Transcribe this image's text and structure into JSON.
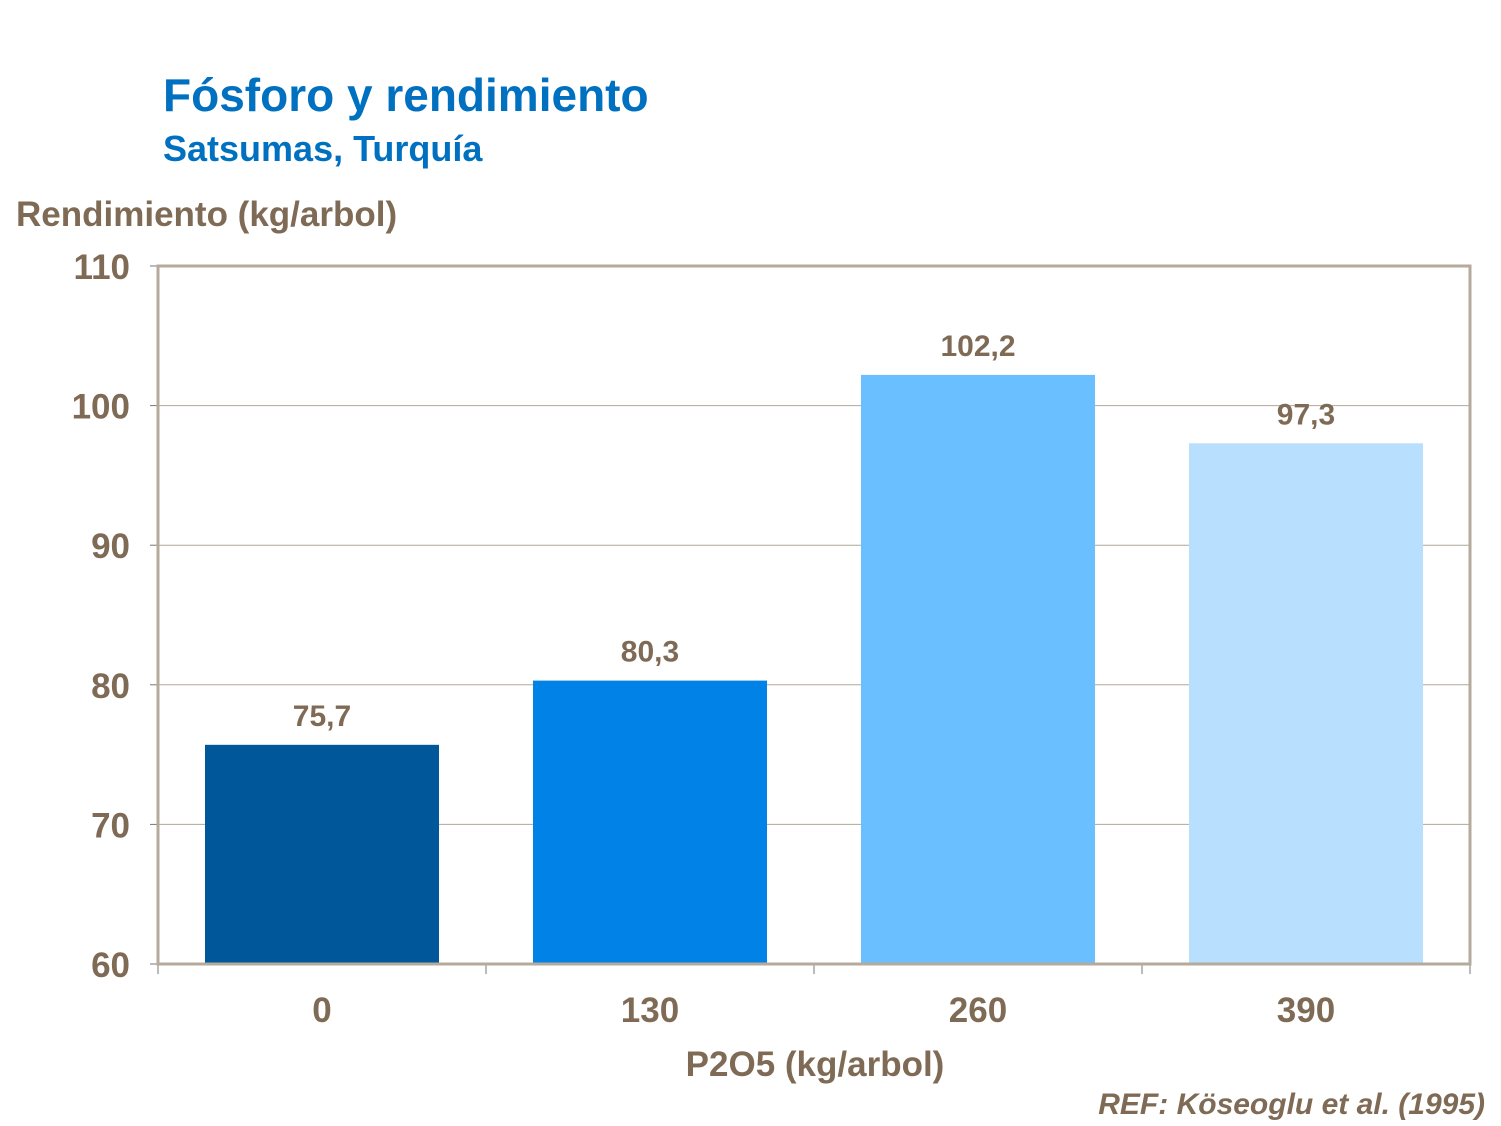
{
  "chart_data": {
    "type": "bar",
    "title": "Fósforo y rendimiento",
    "subtitle": "Satsumas, Turquía",
    "ylabel": "Rendimiento (kg/arbol)",
    "xlabel": "P2O5 (kg/arbol)",
    "categories": [
      "0",
      "130",
      "260",
      "390"
    ],
    "values": [
      75.7,
      80.3,
      102.2,
      97.3
    ],
    "data_labels": [
      "75,7",
      "80,3",
      "102,2",
      "97,3"
    ],
    "bar_colors": [
      "#00589b",
      "#0082e6",
      "#69bfff",
      "#b8dffd"
    ],
    "ylim": [
      60,
      110
    ],
    "yticks": [
      60,
      70,
      80,
      90,
      100,
      110
    ],
    "grid": true,
    "annotation": "REF: Köseoglu et al. (1995)",
    "text_color": "#7f6b55",
    "title_color": "#0070c0"
  }
}
